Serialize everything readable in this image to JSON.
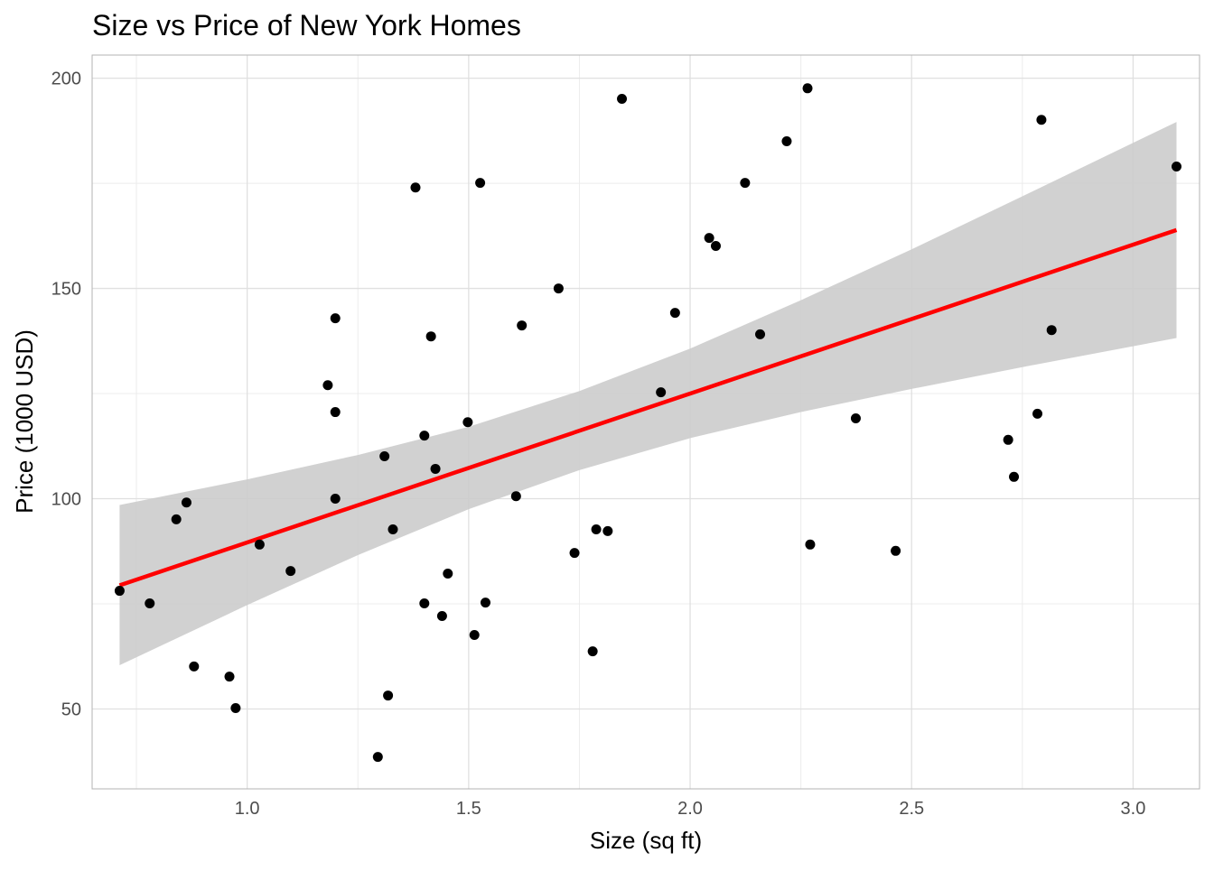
{
  "chart_data": {
    "type": "scatter",
    "title": "Size vs Price of New York Homes",
    "xlabel": "Size (sq ft)",
    "ylabel": "Price (1000 USD)",
    "xlim": [
      0.65,
      3.15
    ],
    "ylim": [
      31,
      205.5
    ],
    "x_ticks": [
      1.0,
      1.5,
      2.0,
      2.5,
      3.0
    ],
    "x_tick_labels": [
      "1.0",
      "1.5",
      "2.0",
      "2.5",
      "3.0"
    ],
    "x_minor_ticks": [
      0.75,
      1.25,
      1.75,
      2.25,
      2.75
    ],
    "y_ticks": [
      50,
      100,
      150,
      200
    ],
    "y_tick_labels": [
      "50",
      "100",
      "150",
      "200"
    ],
    "y_minor_ticks": [
      75,
      125,
      175
    ],
    "grid": true,
    "colors": {
      "points": "#000000",
      "fit_line": "#ff0000",
      "ribbon": "#cccccc",
      "grid": "#e0e0e0",
      "panel_border": "#b3b3b3"
    },
    "points": [
      [
        0.712,
        78.1
      ],
      [
        0.78,
        75.1
      ],
      [
        0.84,
        95.1
      ],
      [
        0.863,
        99.1
      ],
      [
        0.88,
        60.1
      ],
      [
        0.96,
        57.7
      ],
      [
        0.974,
        50.2
      ],
      [
        1.028,
        89.1
      ],
      [
        1.098,
        82.8
      ],
      [
        1.182,
        127.0
      ],
      [
        1.199,
        142.9
      ],
      [
        1.199,
        120.6
      ],
      [
        1.199,
        100.0
      ],
      [
        1.295,
        38.6
      ],
      [
        1.31,
        110.1
      ],
      [
        1.318,
        53.2
      ],
      [
        1.329,
        92.7
      ],
      [
        1.38,
        174.0
      ],
      [
        1.4,
        115.0
      ],
      [
        1.4,
        75.1
      ],
      [
        1.415,
        138.6
      ],
      [
        1.425,
        107.1
      ],
      [
        1.44,
        72.1
      ],
      [
        1.453,
        82.2
      ],
      [
        1.498,
        118.2
      ],
      [
        1.513,
        67.6
      ],
      [
        1.526,
        175.1
      ],
      [
        1.538,
        75.3
      ],
      [
        1.607,
        100.6
      ],
      [
        1.62,
        141.2
      ],
      [
        1.703,
        150.0
      ],
      [
        1.739,
        87.1
      ],
      [
        1.78,
        63.7
      ],
      [
        1.788,
        92.7
      ],
      [
        1.814,
        92.3
      ],
      [
        1.846,
        195.1
      ],
      [
        1.934,
        125.3
      ],
      [
        1.966,
        144.2
      ],
      [
        2.043,
        162.0
      ],
      [
        2.058,
        160.1
      ],
      [
        2.124,
        175.1
      ],
      [
        2.158,
        139.1
      ],
      [
        2.218,
        185.0
      ],
      [
        2.265,
        197.6
      ],
      [
        2.271,
        89.1
      ],
      [
        2.374,
        119.1
      ],
      [
        2.464,
        87.6
      ],
      [
        2.718,
        114.0
      ],
      [
        2.731,
        105.2
      ],
      [
        2.784,
        120.2
      ],
      [
        2.793,
        190.1
      ],
      [
        2.816,
        140.1
      ],
      [
        3.098,
        179.0
      ]
    ],
    "fit": {
      "method": "linear regression",
      "intercept": 54.19,
      "slope": 35.41,
      "x_range": [
        0.712,
        3.098
      ],
      "confidence_band": {
        "x": [
          0.712,
          1.0,
          1.25,
          1.5,
          1.75,
          2.0,
          2.25,
          2.5,
          2.75,
          3.098
        ],
        "lower": [
          60.4,
          74.7,
          86.6,
          97.5,
          106.8,
          114.4,
          120.6,
          126.1,
          131.3,
          138.2
        ],
        "upper": [
          98.5,
          104.6,
          110.4,
          117.1,
          125.6,
          135.7,
          147.2,
          159.3,
          171.9,
          189.6
        ]
      }
    }
  }
}
